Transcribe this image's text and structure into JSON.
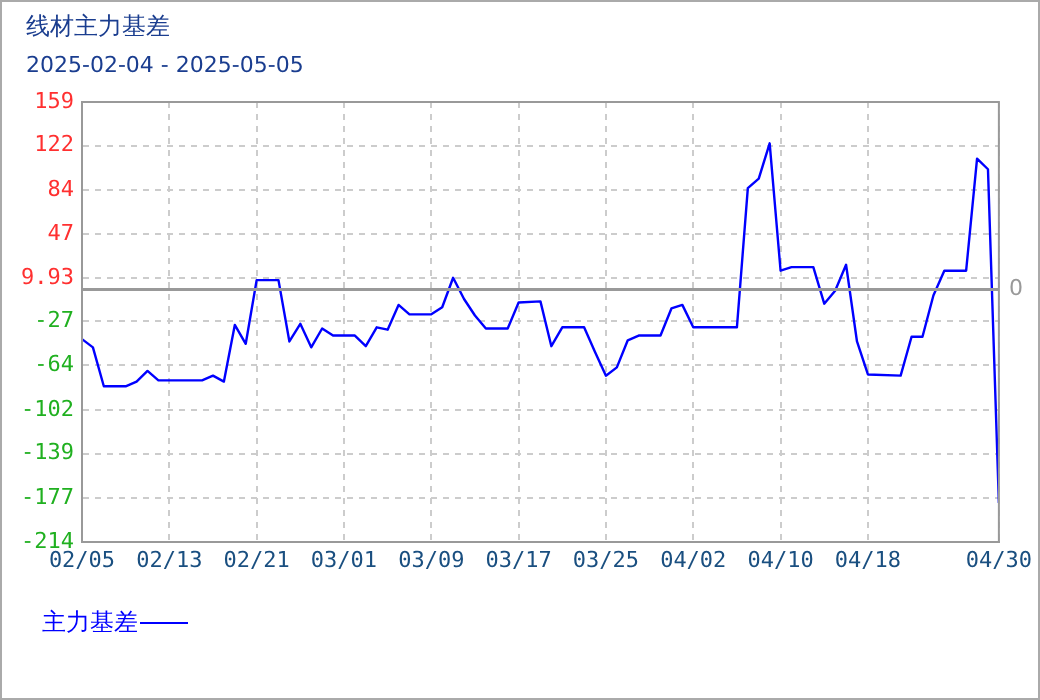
{
  "chart_data": {
    "type": "line",
    "title": "线材主力基差",
    "subtitle": "2025-02-04 - 2025-05-05",
    "x": [
      "2025-02-05",
      "2025-02-06",
      "2025-02-07",
      "2025-02-09",
      "2025-02-10",
      "2025-02-11",
      "2025-02-12",
      "2025-02-16",
      "2025-02-17",
      "2025-02-18",
      "2025-02-19",
      "2025-02-20",
      "2025-02-21",
      "2025-02-23",
      "2025-02-24",
      "2025-02-25",
      "2025-02-26",
      "2025-02-27",
      "2025-02-28",
      "2025-03-02",
      "2025-03-03",
      "2025-03-04",
      "2025-03-05",
      "2025-03-06",
      "2025-03-07",
      "2025-03-09",
      "2025-03-10",
      "2025-03-11",
      "2025-03-12",
      "2025-03-13",
      "2025-03-14",
      "2025-03-16",
      "2025-03-17",
      "2025-03-19",
      "2025-03-20",
      "2025-03-21",
      "2025-03-23",
      "2025-03-24",
      "2025-03-25",
      "2025-03-26",
      "2025-03-27",
      "2025-03-28",
      "2025-03-30",
      "2025-03-31",
      "2025-04-01",
      "2025-04-02",
      "2025-04-06",
      "2025-04-07",
      "2025-04-08",
      "2025-04-09",
      "2025-04-10",
      "2025-04-11",
      "2025-04-13",
      "2025-04-14",
      "2025-04-15",
      "2025-04-16",
      "2025-04-17",
      "2025-04-18",
      "2025-04-21",
      "2025-04-22",
      "2025-04-23",
      "2025-04-24",
      "2025-04-25",
      "2025-04-27",
      "2025-04-28",
      "2025-04-29",
      "2025-04-30"
    ],
    "series": [
      {
        "name": "主力基差",
        "color": "#0000ff",
        "values": [
          -42,
          -49,
          -82,
          -82,
          -78,
          -69,
          -77,
          -77,
          -73,
          -78,
          -30,
          -46,
          8,
          8,
          -44,
          -29,
          -49,
          -33,
          -39,
          -39,
          -48,
          -32,
          -34,
          -13,
          -21,
          -21,
          -15,
          10,
          -8,
          -22,
          -33,
          -33,
          -11,
          -10,
          -48,
          -32,
          -32,
          -53,
          -73,
          -66,
          -43,
          -39,
          -39,
          -16,
          -13,
          -32,
          -32,
          86,
          94,
          124,
          16,
          19,
          19,
          -12,
          -1,
          21,
          -44,
          -72,
          -73,
          -40,
          -40,
          -5,
          16,
          16,
          111,
          102,
          -181
        ]
      }
    ],
    "xlim": [
      "2025-02-05",
      "2025-04-30"
    ],
    "xticks": [
      {
        "value": "2025-02-05",
        "label": "02/05"
      },
      {
        "value": "2025-02-13",
        "label": "02/13"
      },
      {
        "value": "2025-02-21",
        "label": "02/21"
      },
      {
        "value": "2025-03-01",
        "label": "03/01"
      },
      {
        "value": "2025-03-09",
        "label": "03/09"
      },
      {
        "value": "2025-03-17",
        "label": "03/17"
      },
      {
        "value": "2025-03-25",
        "label": "03/25"
      },
      {
        "value": "2025-04-02",
        "label": "04/02"
      },
      {
        "value": "2025-04-10",
        "label": "04/10"
      },
      {
        "value": "2025-04-18",
        "label": "04/18"
      },
      {
        "value": "2025-04-30",
        "label": "04/30"
      }
    ],
    "ylim": [
      -214,
      159
    ],
    "yticks": [
      -214,
      -177,
      -139,
      -102,
      -64,
      -27,
      9.93,
      47,
      84,
      122,
      159
    ],
    "ref_lines": [
      {
        "axis": "y",
        "value": 0,
        "label": "0",
        "color": "#999999"
      }
    ],
    "grid": true,
    "legend": "bottom left",
    "marker": "none",
    "line_style": "solid"
  }
}
